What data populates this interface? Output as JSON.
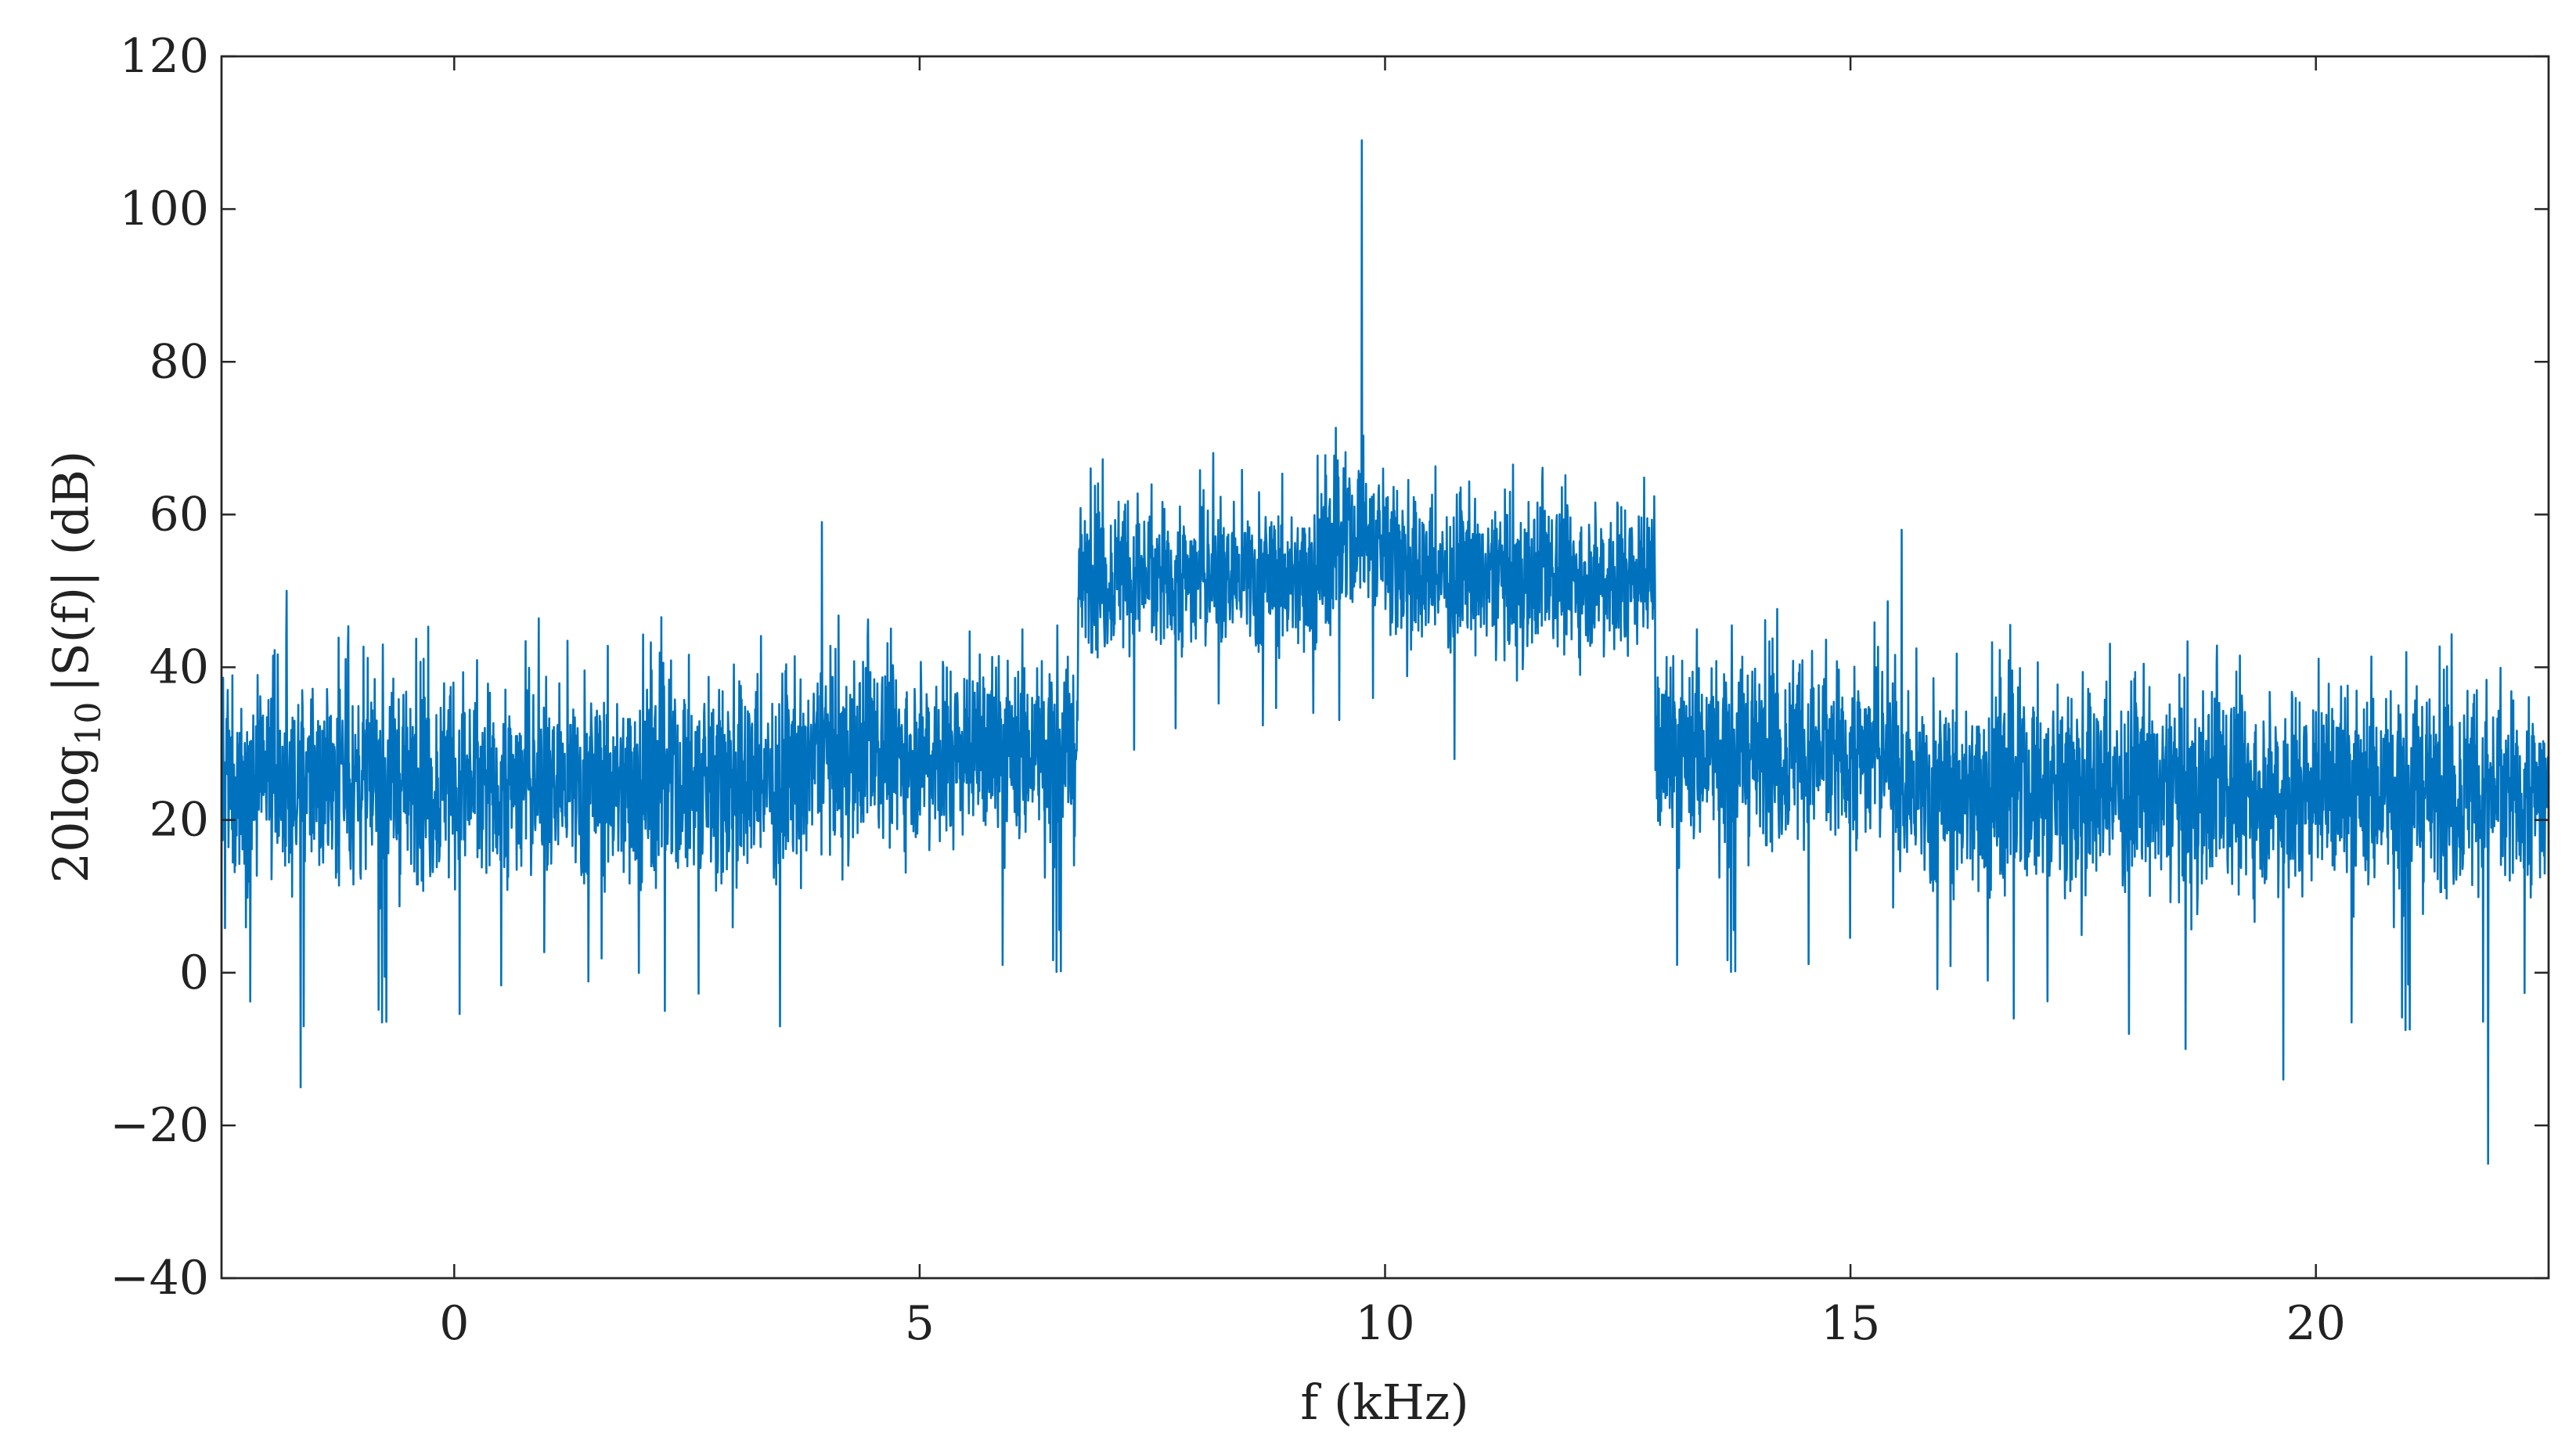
{
  "chart_data": {
    "type": "line",
    "title": "",
    "xlabel": "f (kHz)",
    "ylabel": {
      "prefix": "20log",
      "subscript": "10",
      "suffix": "|S(f)| (dB)"
    },
    "xlim": [
      -2.5,
      22.5
    ],
    "ylim": [
      -40,
      120
    ],
    "xticks": [
      0,
      5,
      10,
      15,
      20
    ],
    "xtick_labels": [
      "0",
      "5",
      "10",
      "15",
      "20"
    ],
    "yticks": [
      -40,
      -20,
      0,
      20,
      40,
      60,
      80,
      100,
      120
    ],
    "ytick_labels": [
      "−40",
      "−20",
      "0",
      "20",
      "40",
      "60",
      "80",
      "100",
      "120"
    ],
    "grid": false,
    "line_color": "#0072BD",
    "series": [
      {
        "description_of_shape": "noisy spectrum",
        "segments": [
          {
            "x_from": -2.5,
            "x_to": 3.8,
            "mean_db": 25,
            "spread_db": 12
          },
          {
            "x_from": 3.8,
            "x_to": 6.7,
            "mean_db": 29,
            "spread_db": 11
          },
          {
            "x_from": 6.7,
            "x_to": 12.9,
            "mean_db": 52,
            "spread_db": 9
          },
          {
            "x_from": 12.9,
            "x_to": 15.5,
            "mean_db": 29,
            "spread_db": 11
          },
          {
            "x_from": 15.5,
            "x_to": 22.5,
            "mean_db": 24,
            "spread_db": 12
          }
        ],
        "peaks": [
          {
            "x": 9.75,
            "y": 109
          },
          {
            "x": 3.95,
            "y": 59
          },
          {
            "x": 15.55,
            "y": 58
          },
          {
            "x": -1.8,
            "y": 50
          }
        ],
        "dips": [
          {
            "x": -1.65,
            "y": -15
          },
          {
            "x": 21.85,
            "y": -25
          },
          {
            "x": 19.65,
            "y": -14
          },
          {
            "x": 18.6,
            "y": -10
          }
        ]
      }
    ]
  }
}
